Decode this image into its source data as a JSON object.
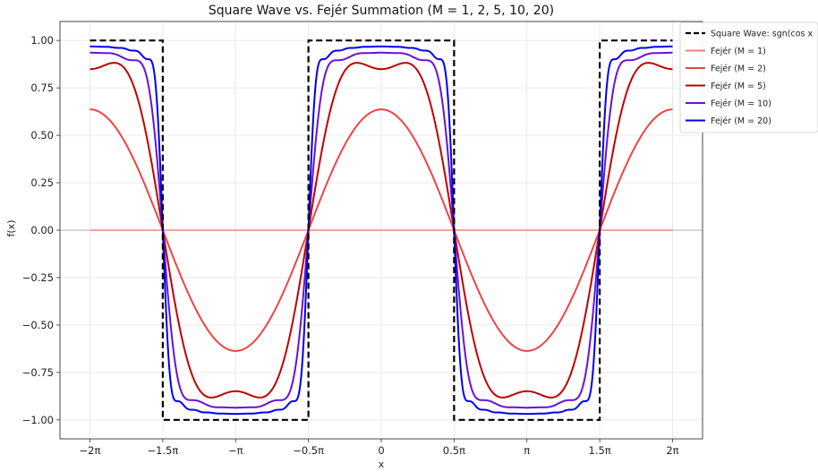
{
  "chart_data": {
    "type": "line",
    "title": "Square Wave vs. Fejér Summation (M = 1, 2, 5, 10, 20)",
    "xlabel": "x",
    "ylabel": "f(x)",
    "xlim": [
      -6.93,
      6.93
    ],
    "ylim": [
      -1.1,
      1.1
    ],
    "x_tick_values": [
      -6.2832,
      -4.7124,
      -3.1416,
      -1.5708,
      0,
      1.5708,
      3.1416,
      4.7124,
      6.2832
    ],
    "x_tick_labels": [
      "−2π",
      "−1.5π",
      "−π",
      "−0.5π",
      "0",
      "0.5π",
      "π",
      "1.5π",
      "2π"
    ],
    "y_tick_values": [
      -1.0,
      -0.75,
      -0.5,
      -0.25,
      0.0,
      0.25,
      0.5,
      0.75,
      1.0
    ],
    "y_tick_labels": [
      "−1.00",
      "−0.75",
      "−0.50",
      "−0.25",
      "0.00",
      "0.25",
      "0.50",
      "0.75",
      "1.00"
    ],
    "x_range": [
      -6.2832,
      6.2832
    ],
    "grid": true,
    "legend_position": "upper-right",
    "series": [
      {
        "name": "Square Wave: sgn(cos x",
        "kind": "square",
        "color": "#000000",
        "dashed": true
      },
      {
        "name": "Fejér (M = 1)",
        "kind": "fejer",
        "M": 1,
        "color": "#f08080"
      },
      {
        "name": "Fejér (M = 2)",
        "kind": "fejer",
        "M": 2,
        "color": "#ee4444"
      },
      {
        "name": "Fejér (M = 5)",
        "kind": "fejer",
        "M": 5,
        "color": "#c00000"
      },
      {
        "name": "Fejér (M = 10)",
        "kind": "fejer",
        "M": 10,
        "color": "#6a10d8"
      },
      {
        "name": "Fejér (M = 20)",
        "kind": "fejer",
        "M": 20,
        "color": "#0000ee"
      }
    ]
  }
}
